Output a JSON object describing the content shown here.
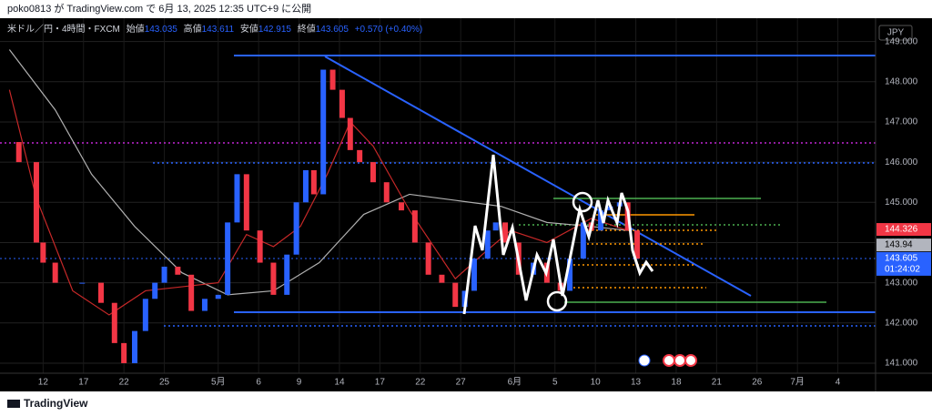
{
  "header": {
    "publisher": "poko0813 が TradingView.com で 6月 13, 2025 12:35 UTC+9 に公開"
  },
  "footer": {
    "brand": "TradingView"
  },
  "chart_data": {
    "type": "candlestick",
    "symbol": "米ドル／円・4時間・FXCM",
    "open_label": "始値",
    "open": 143.035,
    "high_label": "高値",
    "high": 143.611,
    "low_label": "安値",
    "low": 142.915,
    "close_label": "終値",
    "close": 143.605,
    "change": "+0.570 (+0.40%)",
    "currency": "JPY",
    "countdown": "01:24:02",
    "up_color": "#2962ff",
    "down_color": "#f23645",
    "x": [
      -2.5,
      -1.8,
      -0.5,
      0,
      0.9,
      2.9,
      4.3,
      5.3,
      6.0,
      6.8,
      7.6,
      8.3,
      9.0,
      10.0,
      11.0,
      12.0,
      13.0,
      13.7,
      14.4,
      15.1,
      16.1,
      17.1,
      18.1,
      18.8,
      19.5,
      20.1,
      20.8,
      21.5,
      22.2,
      22.8,
      23.5,
      24.5,
      25.5,
      26.6,
      27.6,
      28.6,
      29.6,
      30.6,
      31.3,
      32.0,
      33.0,
      33.6,
      34.3,
      35.3,
      36.4,
      37.4,
      38.4,
      39.1,
      40.1,
      40.7,
      41.4,
      42.1,
      42.8,
      43.4,
      44.1
    ],
    "values": [
      146.5,
      146.0,
      144.0,
      143.5,
      143.0,
      143.0,
      142.5,
      141.5,
      141.0,
      141.8,
      142.6,
      143.0,
      143.4,
      143.2,
      142.3,
      142.6,
      142.7,
      144.5,
      145.7,
      144.3,
      143.5,
      142.7,
      143.7,
      145.0,
      145.8,
      145.2,
      148.3,
      147.8,
      147.1,
      146.3,
      146.0,
      145.5,
      145.0,
      144.8,
      144.0,
      143.2,
      143.0,
      142.4,
      142.8,
      143.6,
      144.3,
      144.5,
      144.0,
      143.2,
      143.5,
      143.0,
      142.8,
      143.6,
      144.5,
      144.3,
      144.8,
      144.9,
      145.0,
      144.3,
      143.6
    ],
    "moving_averages": [
      {
        "color": "#b0b0b0",
        "x": [
          -2.5,
          0.9,
          3.6,
          6.8,
          10.3,
          13.7,
          17.1,
          20.5,
          23.8,
          27.2,
          30.6,
          34.0,
          37.4,
          40.7,
          43.4
        ],
        "values": [
          148.8,
          147.3,
          145.7,
          144.4,
          143.25,
          142.7,
          142.8,
          143.5,
          144.7,
          145.2,
          145.05,
          144.9,
          144.5,
          144.4,
          144.3
        ]
      },
      {
        "color": "#c62828",
        "x": [
          -2.5,
          -0.5,
          2.2,
          4.9,
          7.6,
          10.3,
          13.0,
          15.1,
          17.1,
          19.1,
          21.1,
          22.8,
          24.5,
          27.2,
          30.6,
          32.6,
          34.7,
          37.4,
          40.7,
          43.4
        ],
        "values": [
          147.8,
          145.1,
          142.8,
          142.2,
          142.8,
          142.9,
          143.0,
          144.2,
          143.9,
          144.4,
          145.7,
          147.0,
          146.4,
          144.8,
          143.1,
          143.7,
          144.3,
          144.0,
          144.6,
          144.3
        ]
      }
    ],
    "price_tags": [
      {
        "value": 144.326,
        "color": "#f23645"
      },
      {
        "value": 143.94,
        "color": "#b2b5be"
      },
      {
        "value": 143.605,
        "color": "#2962ff"
      }
    ],
    "xlim": [
      -3.2,
      61.8
    ],
    "xticks": [
      {
        "value": 0,
        "label": "12"
      },
      {
        "value": 3,
        "label": "17"
      },
      {
        "value": 6,
        "label": "22"
      },
      {
        "value": 9,
        "label": "25"
      },
      {
        "value": 13,
        "label": "5月"
      },
      {
        "value": 16,
        "label": "6"
      },
      {
        "value": 19,
        "label": "9"
      },
      {
        "value": 22,
        "label": "14"
      },
      {
        "value": 25,
        "label": "17"
      },
      {
        "value": 28,
        "label": "22"
      },
      {
        "value": 31,
        "label": "27"
      },
      {
        "value": 35,
        "label": "6月"
      },
      {
        "value": 38,
        "label": "5"
      },
      {
        "value": 41,
        "label": "10"
      },
      {
        "value": 44,
        "label": "13"
      },
      {
        "value": 47,
        "label": "18"
      },
      {
        "value": 50,
        "label": "21"
      },
      {
        "value": 53,
        "label": "26"
      },
      {
        "value": 56,
        "label": "7月"
      },
      {
        "value": 59,
        "label": "4"
      }
    ],
    "ylim": [
      140.75,
      149.58
    ],
    "yticks": [
      {
        "value": 141,
        "label": "141.000"
      },
      {
        "value": 142,
        "label": "142.000"
      },
      {
        "value": 143,
        "label": "143.000"
      },
      {
        "value": 144,
        "label": "144.000"
      },
      {
        "value": 145,
        "label": "145.000"
      },
      {
        "value": 146,
        "label": "146.000"
      },
      {
        "value": 147,
        "label": "147.000"
      },
      {
        "value": 148,
        "label": "148.000"
      },
      {
        "value": 149,
        "label": "149.000"
      }
    ],
    "grid": true
  }
}
